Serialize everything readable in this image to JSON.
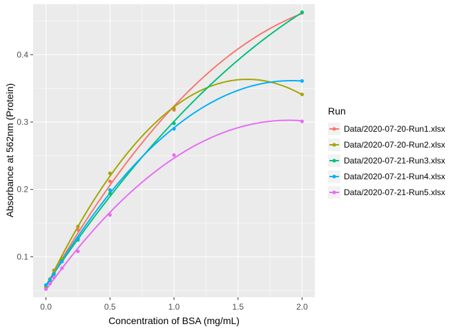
{
  "chart_data": {
    "type": "scatter",
    "title": "",
    "xlabel": "Concentration of BSA (mg/mL)",
    "ylabel": "Absorbance at 562nm (Protein)",
    "xlim": [
      -0.1,
      2.1
    ],
    "ylim": [
      0.04,
      0.475
    ],
    "x_ticks": [
      0.0,
      0.5,
      1.0,
      1.5,
      2.0
    ],
    "x_tick_labels": [
      "0.0",
      "0.5",
      "1.0",
      "1.5",
      "2.0"
    ],
    "y_ticks": [
      0.1,
      0.2,
      0.3,
      0.4
    ],
    "y_tick_labels": [
      "0.1",
      "0.2",
      "0.3",
      "0.4"
    ],
    "grid": true,
    "smooth": "quadratic fit",
    "legend": {
      "title": "Run",
      "placement": "right"
    },
    "x": [
      0,
      0.03125,
      0.0625,
      0.125,
      0.25,
      0.5,
      1.0,
      2.0
    ],
    "series": [
      {
        "name": "Data/2020-07-20-Run1.xlsx",
        "color": "#F8766D",
        "values": [
          0.055,
          0.066,
          0.076,
          0.094,
          0.14,
          0.212,
          0.318,
          0.462
        ]
      },
      {
        "name": "Data/2020-07-20-Run2.xlsx",
        "color": "#A3A500",
        "values": [
          0.055,
          0.067,
          0.08,
          0.097,
          0.145,
          0.224,
          0.32,
          0.341
        ]
      },
      {
        "name": "Data/2020-07-21-Run3.xlsx",
        "color": "#00BF7D",
        "values": [
          0.058,
          0.065,
          0.075,
          0.094,
          0.125,
          0.194,
          0.298,
          0.463
        ]
      },
      {
        "name": "Data/2020-07-21-Run4.xlsx",
        "color": "#00B0F6",
        "values": [
          0.058,
          0.066,
          0.074,
          0.093,
          0.127,
          0.199,
          0.29,
          0.361
        ]
      },
      {
        "name": "Data/2020-07-21-Run5.xlsx",
        "color": "#E76BF3",
        "values": [
          0.052,
          0.06,
          0.069,
          0.083,
          0.108,
          0.162,
          0.251,
          0.301
        ]
      }
    ]
  }
}
